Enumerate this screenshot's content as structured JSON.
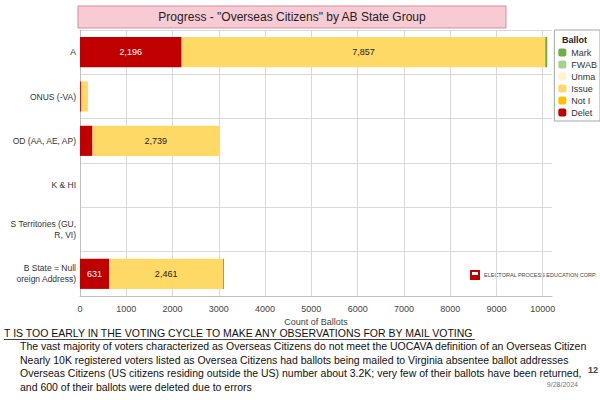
{
  "chart_data": {
    "type": "bar",
    "title": "Progress - \"Overseas Citizens\" by AB State Group",
    "orientation": "horizontal",
    "stacked": true,
    "grid": true,
    "legend": "upper right",
    "legend_title": "Ballot",
    "data_labels": true,
    "categories": [
      "A",
      "ONUS (-VA)",
      "OD (AA, AE, AP)",
      "K & HI",
      "S Territories (GU,\nR, VI)",
      "B State = Null\noreign Address)"
    ],
    "series": [
      {
        "name": "Mark",
        "color": "#70ad47",
        "values": [
          45,
          0,
          0,
          0,
          0,
          20
        ]
      },
      {
        "name": "FWAB",
        "color": "#a9d18e",
        "values": [
          0,
          0,
          0,
          0,
          0,
          0
        ]
      },
      {
        "name": "Unma",
        "color": "#fff2cc",
        "values": [
          0,
          0,
          0,
          0,
          0,
          0
        ]
      },
      {
        "name": "Issue",
        "color": "#ffd966",
        "values": [
          7857,
          150,
          2739,
          0,
          0,
          2461
        ],
        "value_labels": [
          "7,857",
          null,
          "2,739",
          null,
          null,
          "2,461"
        ]
      },
      {
        "name": "Not I",
        "color": "#ffc000",
        "values": [
          0,
          0,
          0,
          0,
          0,
          0
        ]
      },
      {
        "name": "Delet",
        "color": "#c00000",
        "values": [
          2196,
          20,
          270,
          0,
          0,
          631
        ],
        "value_labels": [
          "2,196",
          null,
          null,
          null,
          null,
          "631"
        ]
      }
    ],
    "x_label": "Count of Ballots",
    "xlim": [
      0,
      10200
    ],
    "xticks": [
      0,
      1000,
      2000,
      3000,
      4000,
      5000,
      6000,
      7000,
      8000,
      9000,
      10000
    ],
    "logo_text": "ELECTORAL PROCESS EDUCATION CORP.",
    "note_heading": "T IS TOO EARLY IN THE VOTING CYCLE TO MAKE ANY OBSERVATIONS FOR BY MAIL VOTING",
    "notes": [
      "The vast majority of voters characterized as Overseas Citizens do not meet the UOCAVA definition of an Overseas Citizen",
      "Nearly 10K registered voters listed as Oversea Citizens had ballots being mailed to Virginia absentee ballot addresses",
      "Overseas Citizens (US citizens residing outside the US) number about 3.2K; very few of their ballots have been returned,",
      "and 600 of their ballots were deleted due to errors"
    ],
    "date": "9/28/2024",
    "page_number": "12"
  }
}
